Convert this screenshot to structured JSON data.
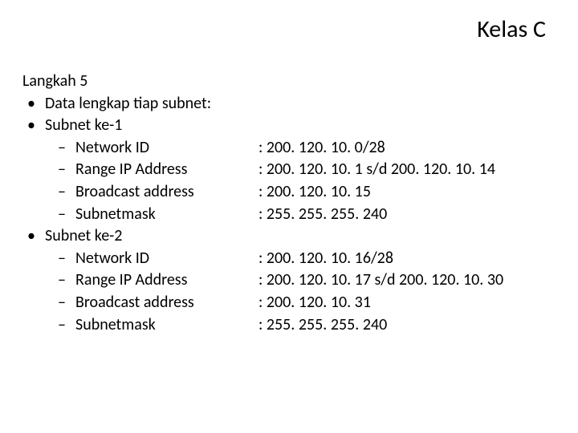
{
  "colors": {
    "background": "#ffffff",
    "text": "#000000"
  },
  "typography": {
    "title_fontsize": 30,
    "body_fontsize": 20,
    "font_family": "Calibri"
  },
  "title": "Kelas C",
  "step": "Langkah 5",
  "intro": "Data lengkap tiap subnet:",
  "subnets": [
    {
      "heading": "Subnet ke-1",
      "rows": [
        {
          "label": "Network ID",
          "value": ": 200. 120. 10. 0/28"
        },
        {
          "label": "Range IP Address",
          "value": ": 200. 120. 10. 1 s/d 200. 120. 10. 14"
        },
        {
          "label": "Broadcast address",
          "value": ": 200. 120. 10. 15"
        },
        {
          "label": "Subnetmask",
          "value": ": 255. 255. 255. 240"
        }
      ]
    },
    {
      "heading": "Subnet ke-2",
      "rows": [
        {
          "label": "Network ID",
          "value": ": 200. 120. 10. 16/28"
        },
        {
          "label": "Range IP Address",
          "value": ": 200. 120. 10. 17 s/d 200. 120. 10. 30"
        },
        {
          "label": "Broadcast address",
          "value": ": 200. 120. 10. 31"
        },
        {
          "label": "Subnetmask",
          "value": ": 255. 255. 255. 240"
        }
      ]
    }
  ]
}
